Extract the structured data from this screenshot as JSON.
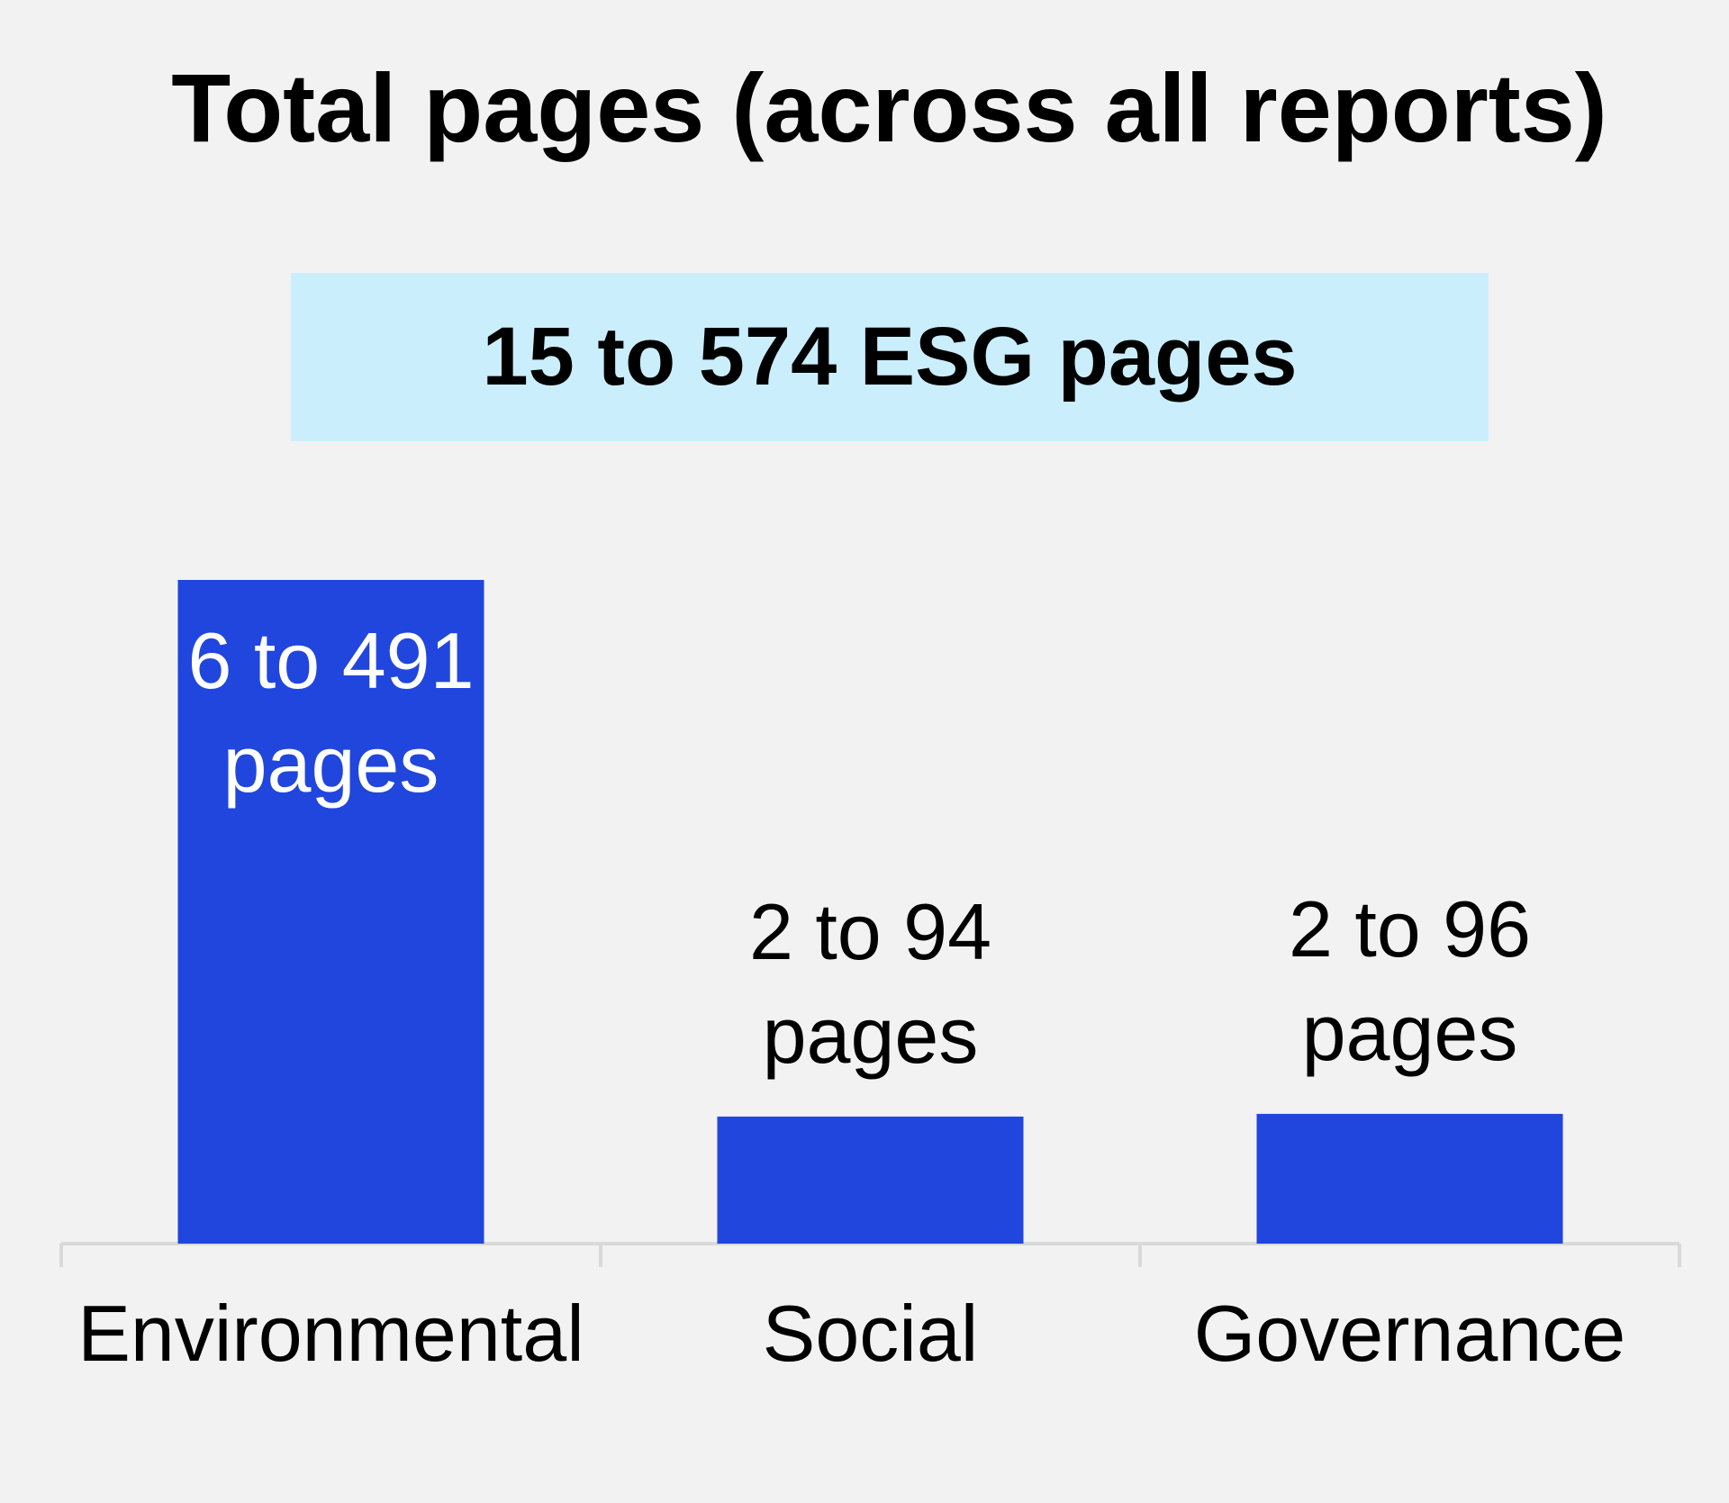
{
  "chart_data": {
    "type": "bar",
    "title": "Total pages (across all reports)",
    "summary": "15 to 574 ESG pages",
    "categories": [
      "Environmental",
      "Social",
      "Governance"
    ],
    "series": [
      {
        "values": [
          491,
          94,
          96
        ],
        "labels": [
          [
            "6 to 491",
            "pages"
          ],
          [
            "2 to 94",
            "pages"
          ],
          [
            "2 to 96",
            "pages"
          ]
        ]
      }
    ],
    "ylim": [
      0,
      491
    ],
    "grid": false,
    "legend": "none",
    "colors": {
      "bar": "#2046dd",
      "label_inside": "#ffffff",
      "label_outside": "#000000",
      "axis": "#d9d9d9",
      "summary_background": "#cbeefc",
      "background": "#f2f2f2"
    }
  }
}
